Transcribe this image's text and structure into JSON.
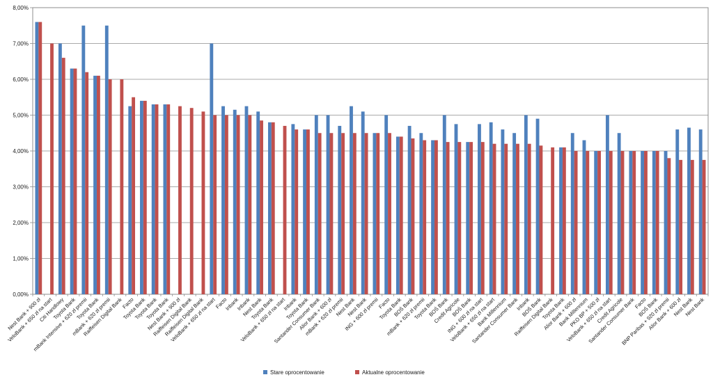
{
  "chart_data": {
    "type": "bar",
    "categories": [
      "Nest Bank + 900 zł",
      "VeloBank + 650 zł na start",
      "Citi Handlowy",
      "Toyota Bank",
      "mBank Intensive + 620 zł premii",
      "Toyota Bank",
      "mBank + 620 zł premii",
      "Raiffeisen Digital Bank",
      "Facto",
      "Toyota Bank",
      "Toyota Bank",
      "Toyota Bank",
      "Nest Bank + 900 zł",
      "Raiffeisen Digital Bank",
      "Raiffeisen Digital Bank",
      "VeloBank + 650 zł na start",
      "Facto",
      "Inbank",
      "Inbank",
      "Nest Bank",
      "Toyota Bank",
      "VeloBank + 650 zł na start",
      "Inbank",
      "Toyota Bank",
      "Santander Consumer Bank",
      "Alior Bank + 600 zł",
      "mBank + 620 zł premii",
      "Nest Bank",
      "Nest Bank",
      "ING + 600 zł premii",
      "Facto",
      "Toyota Bank",
      "BOŚ Bank",
      "mBank + 620 zł premii",
      "Toyota Bank",
      "BOŚ Bank",
      "Credit Agricole",
      "BOŚ Bank",
      "ING + 600 zł na start",
      "VeloBank + 650 zł na start",
      "Bank Millennium",
      "Santander Consumer Bank",
      "Inbank",
      "BOŚ Bank",
      "Raiffeisen Digital Bank",
      "Toyota Bank",
      "Alior Bank + 600 zł",
      "Bank Millennium",
      "PKO BP + 500 zł",
      "VeloBank + 650 zł na start",
      "Credit Agricole",
      "Santander Consumer Bank",
      "Facto",
      "BOŚ Bank",
      "BNP Paribas + 920 zł premii",
      "Alior Bank + 600 zł",
      "Nest Bank",
      "Nest Bank"
    ],
    "series": [
      {
        "name": "Stare oprocentowanie",
        "color": "#4f81bd",
        "values": [
          7.6,
          null,
          7.0,
          6.3,
          7.5,
          6.1,
          7.5,
          null,
          5.25,
          5.4,
          5.3,
          5.3,
          null,
          null,
          null,
          7.0,
          5.25,
          5.15,
          5.25,
          5.1,
          4.8,
          null,
          4.75,
          4.6,
          5.0,
          5.0,
          4.7,
          5.25,
          5.1,
          4.5,
          5.0,
          4.4,
          4.7,
          4.5,
          4.3,
          5.0,
          4.75,
          4.25,
          4.75,
          4.8,
          4.6,
          4.5,
          5.0,
          4.9,
          null,
          4.1,
          4.5,
          4.3,
          4.0,
          5.0,
          4.5,
          4.0,
          4.0,
          4.0,
          4.0,
          4.6,
          4.65,
          4.6
        ]
      },
      {
        "name": "Aktualne oprocentowanie",
        "color": "#c0504d",
        "values": [
          7.6,
          7.0,
          6.6,
          6.3,
          6.2,
          6.1,
          6.0,
          6.0,
          5.5,
          5.4,
          5.3,
          5.3,
          5.25,
          5.2,
          5.1,
          5.0,
          5.0,
          5.0,
          5.0,
          4.85,
          4.8,
          4.7,
          4.6,
          4.6,
          4.5,
          4.5,
          4.5,
          4.5,
          4.5,
          4.5,
          4.5,
          4.4,
          4.35,
          4.3,
          4.3,
          4.25,
          4.25,
          4.25,
          4.25,
          4.2,
          4.2,
          4.2,
          4.2,
          4.15,
          4.1,
          4.1,
          4.0,
          4.0,
          4.0,
          4.0,
          4.0,
          4.0,
          4.0,
          4.0,
          3.8,
          3.75,
          3.75,
          3.75
        ]
      }
    ],
    "y_ticks": [
      "0,00%",
      "1,00%",
      "2,00%",
      "3,00%",
      "4,00%",
      "5,00%",
      "6,00%",
      "7,00%",
      "8,00%"
    ],
    "ylim": [
      0,
      8
    ],
    "grid": true,
    "legend_position": "bottom",
    "title": "",
    "xlabel": "",
    "ylabel": ""
  }
}
